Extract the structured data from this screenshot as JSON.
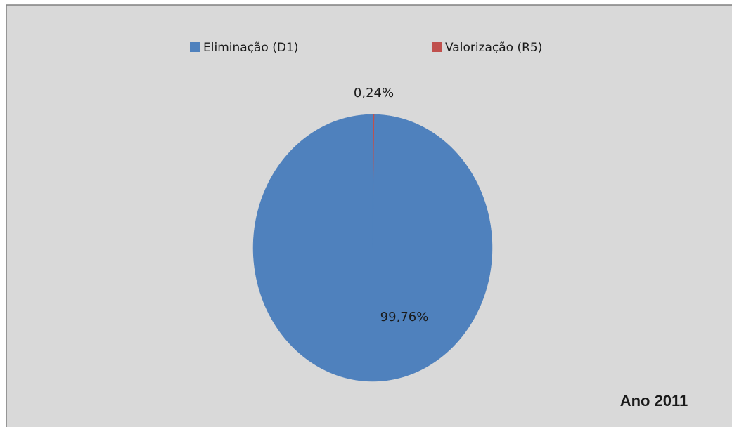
{
  "chart_data": {
    "type": "pie",
    "categories": [
      "Eliminação (D1)",
      "Valorização (R5)"
    ],
    "values": [
      99.76,
      0.24
    ],
    "value_labels": [
      "99,76%",
      "0,24%"
    ],
    "colors": [
      "#4f81bd",
      "#c0504d"
    ],
    "annotation": "Ano 2011",
    "legend": "top"
  }
}
